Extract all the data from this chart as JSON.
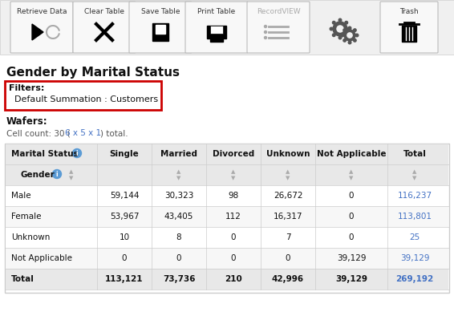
{
  "title": "Gender by Marital Status",
  "filters_label": "Filters:",
  "filters_value": "  Default Summation : Customers",
  "wafers_label": "Wafers:",
  "cell_count_text": "Cell count: 30 (6 x 5 x 1) total.",
  "cell_count_link": "6 x 5 x 1",
  "toolbar_buttons": [
    "Retrieve Data",
    "Clear Table",
    "Save Table",
    "Print Table",
    "RecordVIEW",
    "",
    "Trash"
  ],
  "col_headers": [
    "Marital Status",
    "Single",
    "Married",
    "Divorced",
    "Unknown",
    "Not Applicable",
    "Total"
  ],
  "row_headers": [
    "Gender",
    "Male",
    "Female",
    "Unknown",
    "Not Applicable",
    "Total"
  ],
  "table_data": [
    [
      "59,144",
      "30,323",
      "98",
      "26,672",
      "0",
      "116,237"
    ],
    [
      "53,967",
      "43,405",
      "112",
      "16,317",
      "0",
      "113,801"
    ],
    [
      "10",
      "8",
      "0",
      "7",
      "0",
      "25"
    ],
    [
      "0",
      "0",
      "0",
      "0",
      "39,129",
      "39,129"
    ],
    [
      "113,121",
      "73,736",
      "210",
      "42,996",
      "39,129",
      "269,192"
    ]
  ],
  "bg_color": "#ffffff",
  "toolbar_bg": "#f0f0f0",
  "table_header_bg": "#e8e8e8",
  "table_row_alt_bg": "#f7f7f7",
  "table_border_color": "#cccccc",
  "red_box_color": "#cc0000",
  "total_row_bg": "#e8e8e8",
  "link_color": "#4472c4",
  "total_col_color": "#4472c4"
}
